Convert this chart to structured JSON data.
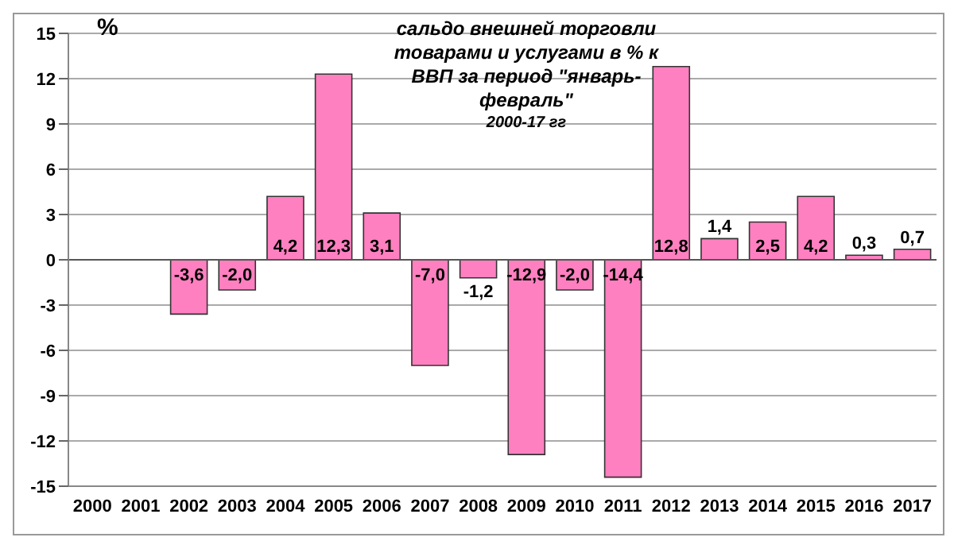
{
  "chart_data": {
    "type": "bar",
    "title": "сальдо внешней торговли товарами и услугами в % к ВВП за период \"январь-февраль\"",
    "subtitle": "2000-17 гг",
    "ylabel": "%",
    "categories": [
      "2000",
      "2001",
      "2002",
      "2003",
      "2004",
      "2005",
      "2006",
      "2007",
      "2008",
      "2009",
      "2010",
      "2011",
      "2012",
      "2013",
      "2014",
      "2015",
      "2016",
      "2017"
    ],
    "values": [
      null,
      null,
      -3.6,
      -2.0,
      4.2,
      12.3,
      3.1,
      -7.0,
      -1.2,
      -12.9,
      -2.0,
      -14.4,
      12.8,
      1.4,
      2.5,
      4.2,
      0.3,
      0.7
    ],
    "value_labels": [
      null,
      null,
      "-3,6",
      "-2,0",
      "4,2",
      "12,3",
      "3,1",
      "-7,0",
      "-1,2",
      "-12,9",
      "-2,0",
      "-14,4",
      "12,8",
      "1,4",
      "2,5",
      "4,2",
      "0,3",
      "0,7"
    ],
    "color": "#ff80c0",
    "ylim": [
      -15,
      15
    ],
    "yticks": [
      -15,
      -12,
      -9,
      -6,
      -3,
      0,
      3,
      6,
      9,
      12,
      15
    ],
    "grid": "y"
  }
}
